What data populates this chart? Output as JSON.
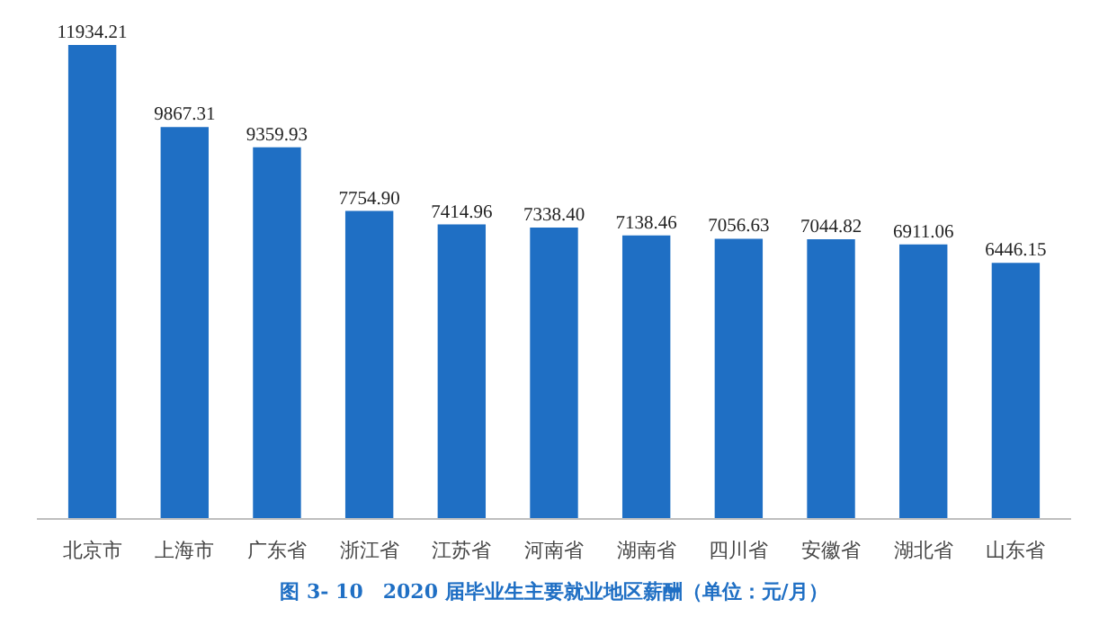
{
  "chart_data": {
    "type": "bar",
    "title": "图 3- 10　2020 届毕业生主要就业地区薪酬（单位：元/月）",
    "categories": [
      "北京市",
      "上海市",
      "广东省",
      "浙江省",
      "江苏省",
      "河南省",
      "湖南省",
      "四川省",
      "安徽省",
      "湖北省",
      "山东省"
    ],
    "values": [
      11934.21,
      9867.31,
      9359.93,
      7754.9,
      7414.96,
      7338.4,
      7138.46,
      7056.63,
      7044.82,
      6911.06,
      6446.15
    ],
    "value_labels": [
      "11934.21",
      "9867.31",
      "9359.93",
      "7754.90",
      "7414.96",
      "7338.40",
      "7138.46",
      "7056.63",
      "7044.82",
      "6911.06",
      "6446.15"
    ],
    "color": "#1f6fc4"
  }
}
